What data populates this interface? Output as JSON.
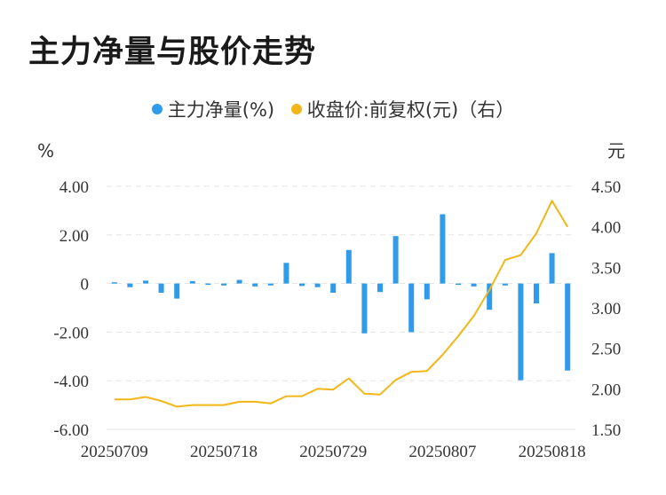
{
  "title": "主力净量与股价走势",
  "legend": [
    {
      "label": "主力净量(%)",
      "color": "#2f9bea"
    },
    {
      "label": "收盘价:前复权(元)（右）",
      "color": "#f2b619"
    }
  ],
  "chart_data": {
    "type": "bar+line",
    "left_unit": "%",
    "right_unit": "元",
    "left_ylim": [
      -6,
      4
    ],
    "right_ylim": [
      1.5,
      4.5
    ],
    "left_ticks": [
      "4.00",
      "2.00",
      "0",
      "-2.00",
      "-4.00",
      "-6.00"
    ],
    "right_ticks": [
      "4.50",
      "4.00",
      "3.50",
      "3.00",
      "2.50",
      "2.00",
      "1.50"
    ],
    "x_tick_labels": [
      "20250709",
      "20250718",
      "20250729",
      "20250807",
      "20250818"
    ],
    "x_tick_indices": [
      0,
      7,
      14,
      21,
      28
    ],
    "series": [
      {
        "name": "主力净量(%)",
        "kind": "bar",
        "axis": "left",
        "color": "#2f9bea",
        "values": [
          0.05,
          -0.15,
          0.12,
          -0.38,
          -0.62,
          0.1,
          -0.05,
          -0.08,
          0.15,
          -0.12,
          -0.08,
          0.85,
          -0.1,
          -0.15,
          -0.38,
          1.38,
          -2.05,
          -0.35,
          1.95,
          -2.0,
          -0.65,
          2.85,
          -0.05,
          -0.12,
          -1.08,
          -0.08,
          -3.98,
          -0.82,
          1.25,
          -3.58
        ]
      },
      {
        "name": "收盘价:前复权(元)（右）",
        "kind": "line",
        "axis": "right",
        "color": "#f2b619",
        "values": [
          1.87,
          1.87,
          1.9,
          1.85,
          1.78,
          1.8,
          1.8,
          1.8,
          1.84,
          1.84,
          1.82,
          1.91,
          1.91,
          2.0,
          1.99,
          2.13,
          1.94,
          1.93,
          2.11,
          2.21,
          2.22,
          2.42,
          2.65,
          2.9,
          3.22,
          3.59,
          3.65,
          3.92,
          4.32,
          4.0
        ]
      }
    ],
    "grid": true
  }
}
